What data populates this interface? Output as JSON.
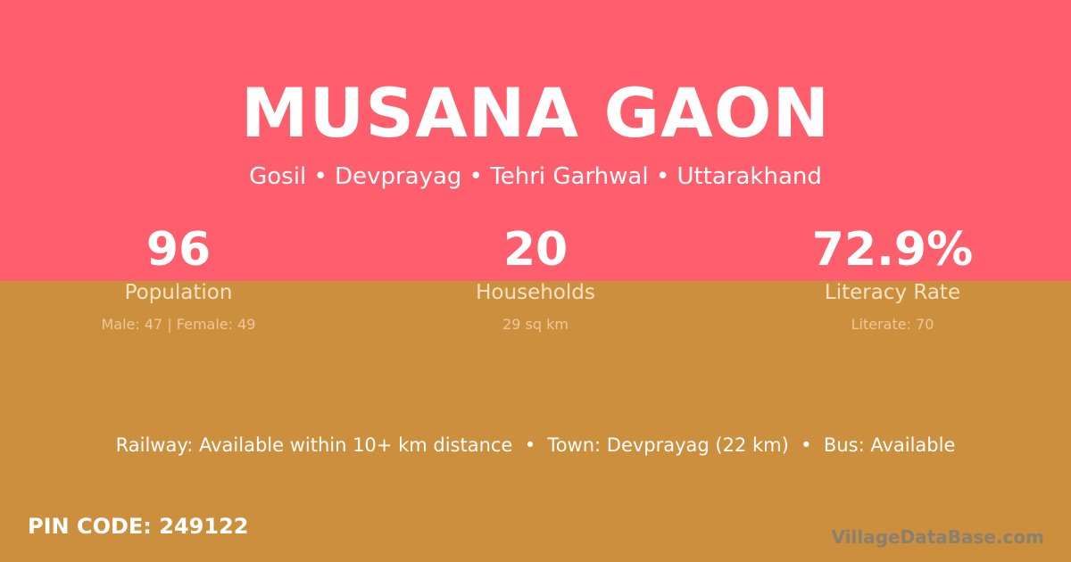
{
  "colors": {
    "top": "#ff5e6c",
    "bottom": "#cc8f3e"
  },
  "title": "MUSANA GAON",
  "subtitle": "Gosil • Devprayag • Tehri Garhwal • Uttarakhand",
  "stats": [
    {
      "value": "96",
      "label": "Population",
      "detail": "Male: 47 | Female: 49"
    },
    {
      "value": "20",
      "label": "Households",
      "detail": "29 sq km"
    },
    {
      "value": "72.9%",
      "label": "Literacy Rate",
      "detail": "Literate: 70"
    }
  ],
  "info": "Railway: Available within 10+ km distance  •  Town: Devprayag (22 km)  •  Bus: Available",
  "pin": "PIN CODE: 249122",
  "brand": "VillageDataBase.com"
}
